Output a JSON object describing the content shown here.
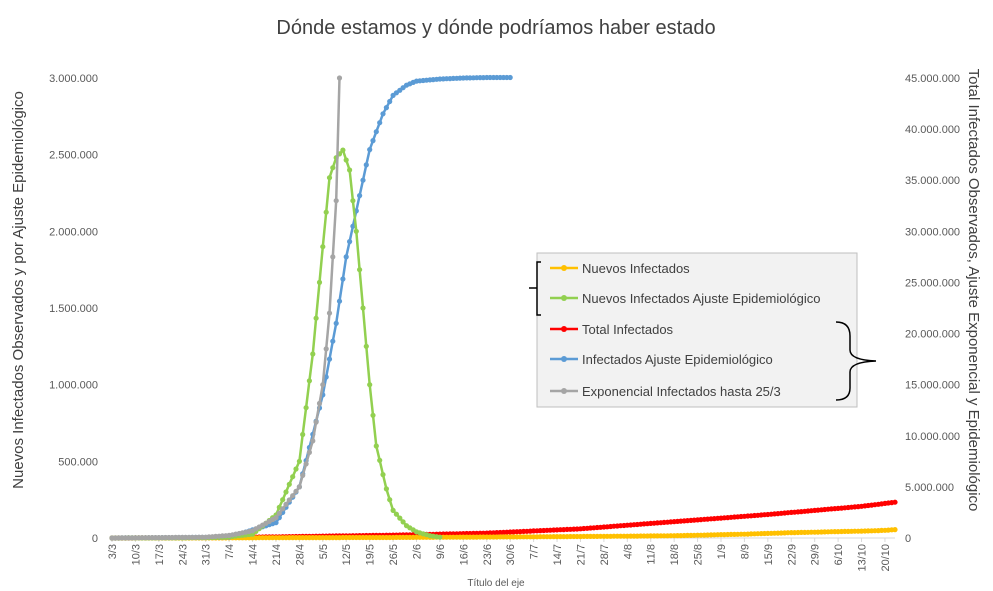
{
  "chart_data": {
    "type": "line",
    "title": "Dónde estamos y dónde podríamos haber estado",
    "xlabel": "Título del eje",
    "ylabel_left": "Nuevos Infectados Observados y por Ajuste Epidemiológico",
    "ylabel_right": "Total Infectados Observados, Ajuste Exponencial y Epidemiológico",
    "ylim_left": [
      0,
      3000000
    ],
    "ylim_right": [
      0,
      45000000
    ],
    "y_ticks_left": [
      "0",
      "500.000",
      "1.000.000",
      "1.500.000",
      "2.000.000",
      "2.500.000",
      "3.000.000"
    ],
    "y_ticks_right": [
      "0",
      "5.000.000",
      "10.000.000",
      "15.000.000",
      "20.000.000",
      "25.000.000",
      "30.000.000",
      "35.000.000",
      "40.000.000",
      "45.000.000"
    ],
    "x_ticks": [
      "3/3",
      "10/3",
      "17/3",
      "24/3",
      "31/3",
      "7/4",
      "14/4",
      "21/4",
      "28/4",
      "5/5",
      "12/5",
      "19/5",
      "26/5",
      "2/6",
      "9/6",
      "16/6",
      "23/6",
      "30/6",
      "7/7",
      "14/7",
      "21/7",
      "28/7",
      "4/8",
      "11/8",
      "18/8",
      "25/8",
      "1/9",
      "8/9",
      "15/9",
      "22/9",
      "29/9",
      "6/10",
      "13/10",
      "20/10"
    ],
    "grid": false,
    "legend_position": "right",
    "series": [
      {
        "name": "Nuevos Infectados",
        "axis": "left",
        "color": "#FFC000",
        "x": [
          "3/3",
          "17/3",
          "31/3",
          "14/4",
          "28/4",
          "12/5",
          "26/5",
          "9/6",
          "23/6",
          "7/7",
          "21/7",
          "4/8",
          "18/8",
          "25/8",
          "1/9",
          "8/9",
          "15/9",
          "22/9",
          "29/9",
          "6/10",
          "13/10",
          "20/10",
          "23/10"
        ],
        "values": [
          0,
          0,
          500,
          1500,
          2500,
          3000,
          3500,
          5000,
          6500,
          8000,
          10000,
          12000,
          15000,
          18000,
          22000,
          25000,
          30000,
          35000,
          38000,
          42000,
          45000,
          50000,
          55000
        ]
      },
      {
        "name": "Nuevos Infectados Ajuste Epidemiológico",
        "axis": "left",
        "color": "#92D050",
        "x": [
          "3/3",
          "31/3",
          "7/4",
          "14/4",
          "21/4",
          "28/4",
          "2/5",
          "5/5",
          "7/5",
          "9/5",
          "11/5",
          "13/5",
          "15/5",
          "17/5",
          "19/5",
          "21/5",
          "24/5",
          "26/5",
          "30/5",
          "2/6",
          "6/6",
          "9/6"
        ],
        "values": [
          0,
          2000,
          8000,
          25000,
          150000,
          500000,
          1200000,
          1900000,
          2350000,
          2480000,
          2530000,
          2400000,
          2000000,
          1500000,
          1000000,
          600000,
          320000,
          180000,
          80000,
          40000,
          15000,
          5000
        ]
      },
      {
        "name": "Total Infectados",
        "axis": "right",
        "color": "#FF0000",
        "x": [
          "3/3",
          "31/3",
          "28/4",
          "26/5",
          "23/6",
          "21/7",
          "18/8",
          "15/9",
          "13/10",
          "23/10"
        ],
        "values": [
          0,
          20000,
          150000,
          280000,
          480000,
          900000,
          1600000,
          2300000,
          3100000,
          3500000
        ]
      },
      {
        "name": "Infectados Ajuste Epidemiológico",
        "axis": "right",
        "color": "#5B9BD5",
        "x": [
          "3/3",
          "7/4",
          "21/4",
          "28/4",
          "5/5",
          "9/5",
          "12/5",
          "16/5",
          "19/5",
          "23/5",
          "26/5",
          "30/5",
          "2/6",
          "9/6",
          "16/6",
          "23/6",
          "30/6"
        ],
        "values": [
          0,
          80000,
          1500000,
          5000000,
          14000000,
          21000000,
          27500000,
          33500000,
          38000000,
          41500000,
          43300000,
          44300000,
          44700000,
          44900000,
          45000000,
          45050000,
          45050000
        ]
      },
      {
        "name": "Exponencial Infectados hasta 25/3",
        "axis": "right",
        "color": "#A5A5A5",
        "x": [
          "3/3",
          "31/3",
          "7/4",
          "14/4",
          "21/4",
          "28/4",
          "2/5",
          "5/5",
          "7/5",
          "9/5",
          "10/5"
        ],
        "values": [
          0,
          80000,
          250000,
          700000,
          2000000,
          5000000,
          9500000,
          15000000,
          22000000,
          33000000,
          45000000
        ]
      }
    ]
  }
}
